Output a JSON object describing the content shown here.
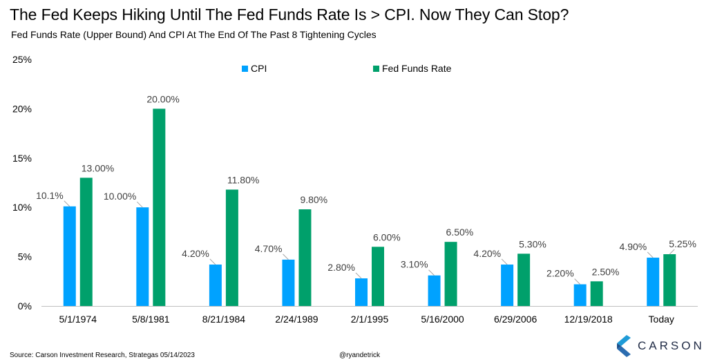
{
  "title": "The Fed Keeps Hiking Until The Fed Funds Rate Is > CPI. Now They Can Stop?",
  "subtitle": "Fed Funds Rate (Upper Bound) And CPI At The End Of The Past 8 Tightening Cycles",
  "footer": {
    "source": "Source: Carson Investment Research, Strategas 05/14/2023",
    "handle": "@ryandetrick"
  },
  "logo": {
    "text": "CARSON",
    "icon": "carson-chevron-logo-icon"
  },
  "colors": {
    "cpi": "#00A2FF",
    "fed": "#00A06B",
    "axis": "#BFBFBF",
    "leader": "#A6A6A6"
  },
  "chart_data": {
    "type": "bar",
    "categories": [
      "5/1/1974",
      "5/8/1981",
      "8/21/1984",
      "2/24/1989",
      "2/1/1995",
      "5/16/2000",
      "6/29/2006",
      "12/19/2018",
      "Today"
    ],
    "series": [
      {
        "name": "CPI",
        "values": [
          10.1,
          10.0,
          4.2,
          4.7,
          2.8,
          3.1,
          4.2,
          2.2,
          4.9
        ],
        "labels": [
          "10.1%",
          "10.00%",
          "4.20%",
          "4.70%",
          "2.80%",
          "3.10%",
          "4.20%",
          "2.20%",
          "4.90%"
        ]
      },
      {
        "name": "Fed Funds Rate",
        "values": [
          13.0,
          20.0,
          11.8,
          9.8,
          6.0,
          6.5,
          5.3,
          2.5,
          5.25
        ],
        "labels": [
          "13.00%",
          "20.00%",
          "11.80%",
          "9.80%",
          "6.00%",
          "6.50%",
          "5.30%",
          "2.50%",
          "5.25%"
        ]
      }
    ],
    "ylim": [
      0,
      25
    ],
    "yticks": [
      0,
      5,
      10,
      15,
      20,
      25
    ],
    "ytick_labels": [
      "0%",
      "5%",
      "10%",
      "15%",
      "20%",
      "25%"
    ],
    "legend_position": "top-center",
    "grid": false
  }
}
